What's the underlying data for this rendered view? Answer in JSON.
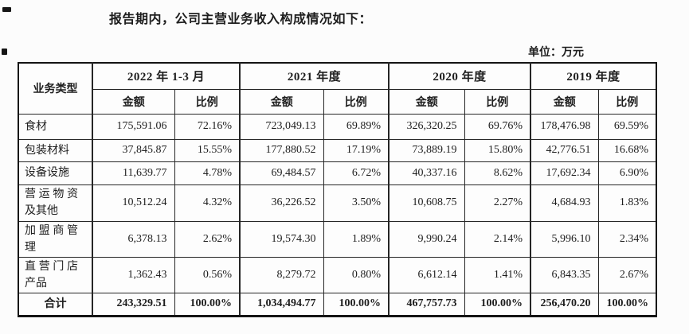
{
  "page": {
    "title": "报告期内，公司主营业务收入构成情况如下：",
    "unit_label": "单位：万元"
  },
  "table": {
    "corner_header": "业务类型",
    "period_headers": [
      "2022 年 1-3 月",
      "2021 年度",
      "2020 年度",
      "2019 年度"
    ],
    "sub_headers": {
      "amount": "金额",
      "ratio": "比例"
    },
    "rows": [
      {
        "label": "食材",
        "values": [
          "175,591.06",
          "72.16%",
          "723,049.13",
          "69.89%",
          "326,320.25",
          "69.76%",
          "178,476.98",
          "69.59%"
        ]
      },
      {
        "label": "包装材料",
        "values": [
          "37,845.87",
          "15.55%",
          "177,880.52",
          "17.19%",
          "73,889.19",
          "15.80%",
          "42,776.51",
          "16.68%"
        ]
      },
      {
        "label": "设备设施",
        "values": [
          "11,639.77",
          "4.78%",
          "69,484.57",
          "6.72%",
          "40,337.16",
          "8.62%",
          "17,692.34",
          "6.90%"
        ]
      },
      {
        "label": "营运物资及其他",
        "values": [
          "10,512.24",
          "4.32%",
          "36,226.52",
          "3.50%",
          "10,608.75",
          "2.27%",
          "4,684.93",
          "1.83%"
        ]
      },
      {
        "label": "加盟商管理",
        "values": [
          "6,378.13",
          "2.62%",
          "19,574.30",
          "1.89%",
          "9,990.24",
          "2.14%",
          "5,996.10",
          "2.34%"
        ]
      },
      {
        "label": "直营门店产品",
        "values": [
          "1,362.43",
          "0.56%",
          "8,279.72",
          "0.80%",
          "6,612.14",
          "1.41%",
          "6,843.35",
          "2.67%"
        ]
      }
    ],
    "total_row": {
      "label": "合计",
      "values": [
        "243,329.51",
        "100.00%",
        "1,034,494.77",
        "100.00%",
        "467,757.73",
        "100.00%",
        "256,470.20",
        "100.00%"
      ]
    }
  },
  "colors": {
    "text": "#1e1e1e",
    "border": "#262626",
    "outer_border": "#141414",
    "background": "#fcfcfc"
  }
}
